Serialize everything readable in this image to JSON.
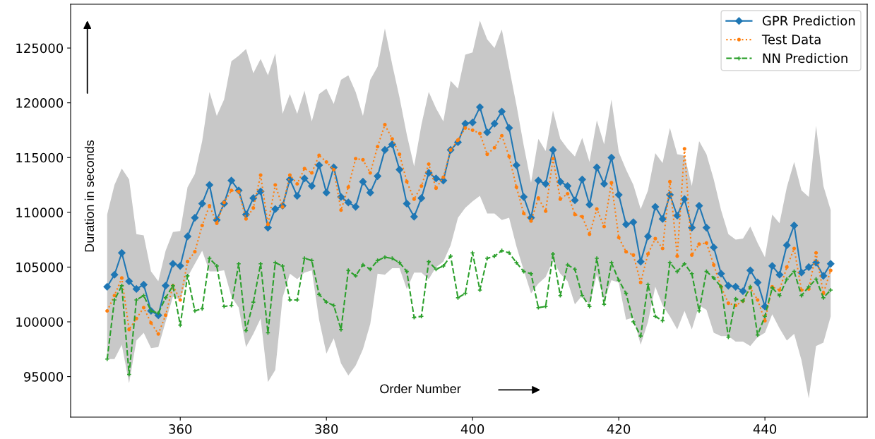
{
  "chart_data": {
    "type": "line",
    "xlabel": "Order Number",
    "ylabel": "Duration in seconds",
    "x": [
      350,
      351,
      352,
      353,
      354,
      355,
      356,
      357,
      358,
      359,
      360,
      361,
      362,
      363,
      364,
      365,
      366,
      367,
      368,
      369,
      370,
      371,
      372,
      373,
      374,
      375,
      376,
      377,
      378,
      379,
      380,
      381,
      382,
      383,
      384,
      385,
      386,
      387,
      388,
      389,
      390,
      391,
      392,
      393,
      394,
      395,
      396,
      397,
      398,
      399,
      400,
      401,
      402,
      403,
      404,
      405,
      406,
      407,
      408,
      409,
      410,
      411,
      412,
      413,
      414,
      415,
      416,
      417,
      418,
      419,
      420,
      421,
      422,
      423,
      424,
      425,
      426,
      427,
      428,
      429,
      430,
      431,
      432,
      433,
      434,
      435,
      436,
      437,
      438,
      439,
      440,
      441,
      442,
      443,
      444,
      445,
      446,
      447,
      448,
      449
    ],
    "series": [
      {
        "name": "GPR Prediction",
        "color": "#1f77b4",
        "marker": "diamond",
        "line_style": "solid",
        "values": [
          103200,
          104300,
          106300,
          103700,
          103000,
          103400,
          101000,
          100600,
          103300,
          105300,
          105100,
          107800,
          109500,
          110800,
          112500,
          109300,
          110800,
          112900,
          112000,
          109800,
          111300,
          111900,
          108600,
          110300,
          110600,
          113000,
          111500,
          113100,
          112400,
          114300,
          111800,
          114100,
          111400,
          110900,
          110500,
          112800,
          111800,
          113300,
          115700,
          116200,
          113900,
          110800,
          109600,
          111300,
          113600,
          113100,
          112900,
          115700,
          116400,
          118100,
          118200,
          119600,
          117300,
          118100,
          119200,
          117700,
          114300,
          111400,
          109500,
          112900,
          112600,
          115700,
          112800,
          112400,
          111100,
          113000,
          110700,
          114100,
          112600,
          115000,
          111600,
          108900,
          109100,
          105500,
          107800,
          110500,
          109400,
          111600,
          109700,
          111200,
          108600,
          110600,
          108600,
          106800,
          104400,
          103300,
          103200,
          102800,
          104700,
          103600,
          101400,
          105100,
          104300,
          107000,
          108800,
          104500,
          105000,
          105400,
          104200,
          105300
        ],
        "upper": [
          109800,
          112500,
          114000,
          113000,
          108000,
          107900,
          104600,
          103700,
          106500,
          108200,
          108300,
          112300,
          113500,
          116500,
          121000,
          118800,
          120300,
          123800,
          124300,
          124900,
          122700,
          124000,
          122500,
          124500,
          119000,
          120800,
          119000,
          121100,
          118300,
          120800,
          121300,
          119900,
          122100,
          122500,
          121000,
          118800,
          122100,
          123300,
          126800,
          123500,
          120500,
          117100,
          114200,
          118000,
          121000,
          119500,
          118300,
          122000,
          121300,
          124400,
          124600,
          127500,
          125800,
          125000,
          126700,
          123200,
          119800,
          116100,
          112700,
          116700,
          115600,
          119300,
          116700,
          115800,
          115100,
          116800,
          114600,
          118400,
          116200,
          120300,
          115500,
          113900,
          112500,
          110300,
          112000,
          115400,
          114500,
          117700,
          115300,
          115200,
          112400,
          116500,
          115300,
          113000,
          110200,
          108000,
          107500,
          107600,
          108700,
          107200,
          105900,
          109800,
          109000,
          112300,
          114600,
          112000,
          111400,
          117900,
          112400,
          110200
        ],
        "lower": [
          96600,
          96600,
          97900,
          94400,
          98300,
          99000,
          97600,
          97700,
          100000,
          102300,
          102000,
          104100,
          105300,
          106500,
          104600,
          104600,
          104700,
          102300,
          101300,
          97700,
          98900,
          100300,
          94500,
          95600,
          102200,
          104400,
          103900,
          104500,
          104700,
          100200,
          97100,
          98500,
          96200,
          95100,
          96000,
          97500,
          99800,
          104400,
          104300,
          104900,
          104900,
          103000,
          104500,
          104500,
          103900,
          105000,
          105500,
          107000,
          109500,
          110400,
          111000,
          111500,
          109900,
          109900,
          109300,
          109500,
          106900,
          104700,
          102600,
          103500,
          104100,
          105600,
          104400,
          103700,
          101600,
          102400,
          101600,
          104300,
          102000,
          103800,
          103600,
          100200,
          100400,
          97900,
          100000,
          103200,
          101500,
          100500,
          99300,
          101000,
          99300,
          101500,
          101100,
          99000,
          98700,
          98700,
          98200,
          98200,
          97800,
          98600,
          99000,
          100700,
          99400,
          98300,
          98900,
          96500,
          93000,
          97800,
          98100,
          100500
        ]
      },
      {
        "name": "Test Data",
        "color": "#ff7f0e",
        "marker": "circle",
        "line_style": "dotted",
        "values": [
          101000,
          102400,
          104000,
          99300,
          100300,
          101300,
          99900,
          98900,
          100600,
          103300,
          102000,
          105500,
          106400,
          108800,
          110600,
          109000,
          110900,
          112000,
          111900,
          109400,
          110400,
          113400,
          108900,
          112500,
          110500,
          113400,
          112600,
          114000,
          113600,
          115200,
          114600,
          113900,
          110200,
          112300,
          114900,
          114800,
          113600,
          116000,
          118000,
          116700,
          115300,
          112800,
          111200,
          112400,
          114400,
          112200,
          113200,
          115700,
          116600,
          117700,
          117500,
          117200,
          115300,
          115900,
          117000,
          115100,
          112300,
          109900,
          109200,
          111300,
          110100,
          114900,
          111200,
          111700,
          109800,
          109600,
          108000,
          110300,
          108700,
          112700,
          107700,
          106400,
          106100,
          103600,
          106200,
          107600,
          106700,
          112800,
          106000,
          115800,
          106100,
          107100,
          107200,
          105200,
          103200,
          101700,
          101500,
          101900,
          103100,
          102000,
          100100,
          103200,
          102900,
          105000,
          106700,
          102900,
          103000,
          106300,
          102600,
          104700
        ]
      },
      {
        "name": "NN Prediction",
        "color": "#2ca02c",
        "marker": "cross",
        "line_style": "dashed",
        "values": [
          96600,
          102000,
          103300,
          95200,
          102000,
          102400,
          101000,
          100800,
          102200,
          103300,
          99700,
          104200,
          101000,
          101200,
          105800,
          105100,
          101400,
          101500,
          105300,
          99200,
          101800,
          105300,
          99000,
          105400,
          105100,
          102000,
          102000,
          105800,
          105600,
          102500,
          101800,
          101500,
          99300,
          104700,
          104200,
          105200,
          104800,
          105600,
          105900,
          105800,
          105400,
          104600,
          100400,
          100500,
          105500,
          104800,
          105100,
          106000,
          102200,
          102600,
          106300,
          102900,
          105800,
          106000,
          106500,
          106300,
          105400,
          104600,
          104400,
          101300,
          101400,
          106200,
          102400,
          105200,
          104800,
          102400,
          101400,
          105800,
          101600,
          105400,
          103800,
          102600,
          100000,
          98700,
          103400,
          100500,
          100100,
          105400,
          104600,
          105300,
          104400,
          101000,
          104600,
          104000,
          103200,
          98600,
          102100,
          101900,
          103200,
          98800,
          100500,
          103100,
          102400,
          103900,
          104600,
          102400,
          103200,
          103900,
          102200,
          102900
        ]
      }
    ],
    "xlim": [
      345,
      454
    ],
    "ylim": [
      91300,
      129000
    ],
    "xticks": [
      360,
      380,
      400,
      420,
      440
    ],
    "yticks": [
      95000,
      100000,
      105000,
      110000,
      115000,
      120000,
      125000
    ],
    "grid": false,
    "legend": "top right"
  }
}
